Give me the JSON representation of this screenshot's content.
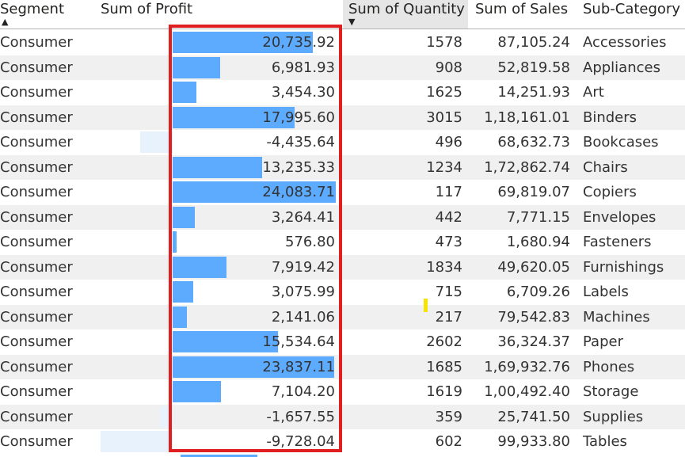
{
  "header": {
    "segment": "Segment",
    "profit": "Sum of Profit",
    "quantity": "Sum of Quantity",
    "sales": "Sum of Sales",
    "subcategory": "Sub-Category",
    "segment_sort_icon": "▲",
    "quantity_sort_icon": "▼"
  },
  "profit_bar_scale": {
    "max_positive": 24083.71,
    "max_negative": 9728.04
  },
  "rows": [
    {
      "segment": "Consumer",
      "profit": "20,735.92",
      "profit_value": 20735.92,
      "quantity": "1578",
      "sales": "87,105.24",
      "subcategory": "Accessories"
    },
    {
      "segment": "Consumer",
      "profit": "6,981.93",
      "profit_value": 6981.93,
      "quantity": "908",
      "sales": "52,819.58",
      "subcategory": "Appliances"
    },
    {
      "segment": "Consumer",
      "profit": "3,454.30",
      "profit_value": 3454.3,
      "quantity": "1625",
      "sales": "14,251.93",
      "subcategory": "Art"
    },
    {
      "segment": "Consumer",
      "profit": "17,995.60",
      "profit_value": 17995.6,
      "quantity": "3015",
      "sales": "1,18,161.01",
      "subcategory": "Binders"
    },
    {
      "segment": "Consumer",
      "profit": "-4,435.64",
      "profit_value": -4435.64,
      "quantity": "496",
      "sales": "68,632.73",
      "subcategory": "Bookcases"
    },
    {
      "segment": "Consumer",
      "profit": "13,235.33",
      "profit_value": 13235.33,
      "quantity": "1234",
      "sales": "1,72,862.74",
      "subcategory": "Chairs"
    },
    {
      "segment": "Consumer",
      "profit": "24,083.71",
      "profit_value": 24083.71,
      "quantity": "117",
      "sales": "69,819.07",
      "subcategory": "Copiers"
    },
    {
      "segment": "Consumer",
      "profit": "3,264.41",
      "profit_value": 3264.41,
      "quantity": "442",
      "sales": "7,771.15",
      "subcategory": "Envelopes"
    },
    {
      "segment": "Consumer",
      "profit": "576.80",
      "profit_value": 576.8,
      "quantity": "473",
      "sales": "1,680.94",
      "subcategory": "Fasteners"
    },
    {
      "segment": "Consumer",
      "profit": "7,919.42",
      "profit_value": 7919.42,
      "quantity": "1834",
      "sales": "49,620.05",
      "subcategory": "Furnishings"
    },
    {
      "segment": "Consumer",
      "profit": "3,075.99",
      "profit_value": 3075.99,
      "quantity": "715",
      "sales": "6,709.26",
      "subcategory": "Labels"
    },
    {
      "segment": "Consumer",
      "profit": "2,141.06",
      "profit_value": 2141.06,
      "quantity": "217",
      "sales": "79,542.83",
      "subcategory": "Machines"
    },
    {
      "segment": "Consumer",
      "profit": "15,534.64",
      "profit_value": 15534.64,
      "quantity": "2602",
      "sales": "36,324.37",
      "subcategory": "Paper"
    },
    {
      "segment": "Consumer",
      "profit": "23,837.11",
      "profit_value": 23837.11,
      "quantity": "1685",
      "sales": "1,69,932.76",
      "subcategory": "Phones"
    },
    {
      "segment": "Consumer",
      "profit": "7,104.20",
      "profit_value": 7104.2,
      "quantity": "1619",
      "sales": "1,00,492.40",
      "subcategory": "Storage"
    },
    {
      "segment": "Consumer",
      "profit": "-1,657.55",
      "profit_value": -1657.55,
      "quantity": "359",
      "sales": "25,741.50",
      "subcategory": "Supplies"
    },
    {
      "segment": "Consumer",
      "profit": "-9,728.04",
      "profit_value": -9728.04,
      "quantity": "602",
      "sales": "99,933.80",
      "subcategory": "Tables"
    }
  ],
  "colors": {
    "positive_bar": "#5cabff",
    "negative_bar": "#e8f2fd",
    "highlight_border": "#e02020",
    "alt_row": "#f0f0f0",
    "sorted_header": "#e6e6e6"
  }
}
